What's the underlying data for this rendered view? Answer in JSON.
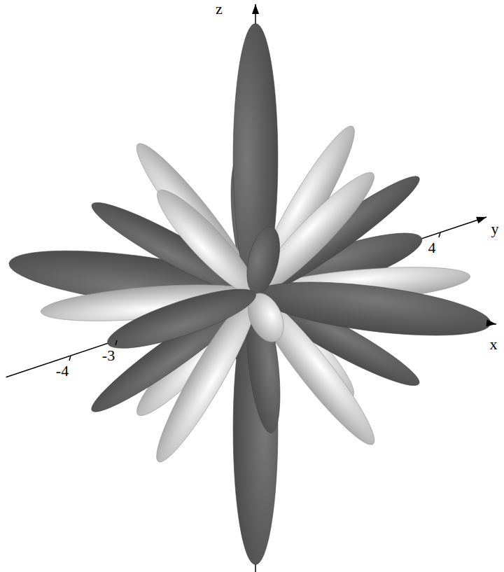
{
  "chart_data": {
    "type": "surface3d",
    "x_label": "x",
    "y_label": "y",
    "z_label": "z",
    "xlim": [
      -4.4,
      4.3
    ],
    "ylim": [
      -5.4,
      5
    ],
    "zlim": [
      -4.5,
      4.5
    ],
    "yticks": [
      -4,
      -3,
      4
    ],
    "tick_labels": "y",
    "lobes": [
      {
        "x": 0,
        "y": 3.6,
        "z": 0,
        "color": "#5a5a5a"
      },
      {
        "x": -2.1,
        "y": 2.1,
        "z": 0,
        "color": "#c4c4c4"
      },
      {
        "x": 0,
        "y": 2.1,
        "z": 2.1,
        "color": "#c4c4c4"
      },
      {
        "x": -1.6,
        "y": 1.6,
        "z": 1.6,
        "color": "#5a5a5a"
      },
      {
        "x": -1.6,
        "y": 1.6,
        "z": -1.6,
        "color": "#5a5a5a"
      },
      {
        "x": 0,
        "y": 2.1,
        "z": -2.1,
        "color": "#c4c4c4"
      },
      {
        "x": 2.1,
        "y": 2.1,
        "z": 0,
        "color": "#c4c4c4"
      },
      {
        "x": 1.6,
        "y": 1.6,
        "z": 1.6,
        "color": "#5a5a5a"
      },
      {
        "x": -4.4,
        "y": 0,
        "z": 0,
        "color": "#5a5a5a"
      },
      {
        "x": -2.1,
        "y": 0,
        "z": 2.1,
        "color": "#c4c4c4"
      },
      {
        "x": 1.6,
        "y": 1.6,
        "z": -1.6,
        "color": "#5a5a5a"
      },
      {
        "x": 0,
        "y": 0,
        "z": 4.2,
        "color": "#5a5a5a"
      },
      {
        "x": -2.1,
        "y": 0,
        "z": -2.1,
        "color": "#c4c4c4"
      },
      {
        "x": 2.1,
        "y": 0,
        "z": 2.1,
        "color": "#c4c4c4"
      },
      {
        "x": 0,
        "y": 0,
        "z": -4.2,
        "color": "#5a5a5a"
      },
      {
        "x": -1.6,
        "y": -1.6,
        "z": 1.6,
        "color": "#5a5a5a"
      },
      {
        "x": 2.1,
        "y": 0,
        "z": -2.1,
        "color": "#c4c4c4"
      },
      {
        "x": 4.2,
        "y": 0,
        "z": 0,
        "color": "#5a5a5a"
      },
      {
        "x": -1.6,
        "y": -1.6,
        "z": -1.6,
        "color": "#5a5a5a"
      },
      {
        "x": -2.1,
        "y": -2.1,
        "z": 0,
        "color": "#c4c4c4"
      },
      {
        "x": 0,
        "y": -2.1,
        "z": 2.1,
        "color": "#c4c4c4"
      },
      {
        "x": 1.6,
        "y": -1.6,
        "z": 1.6,
        "color": "#5a5a5a"
      },
      {
        "x": 1.6,
        "y": -1.6,
        "z": -1.6,
        "color": "#5a5a5a"
      },
      {
        "x": 0,
        "y": -2.1,
        "z": -2.1,
        "color": "#c4c4c4"
      },
      {
        "x": 2.1,
        "y": -2.1,
        "z": 0,
        "color": "#c4c4c4"
      },
      {
        "x": 0,
        "y": -3.2,
        "z": 0,
        "color": "#5a5a5a"
      }
    ]
  }
}
